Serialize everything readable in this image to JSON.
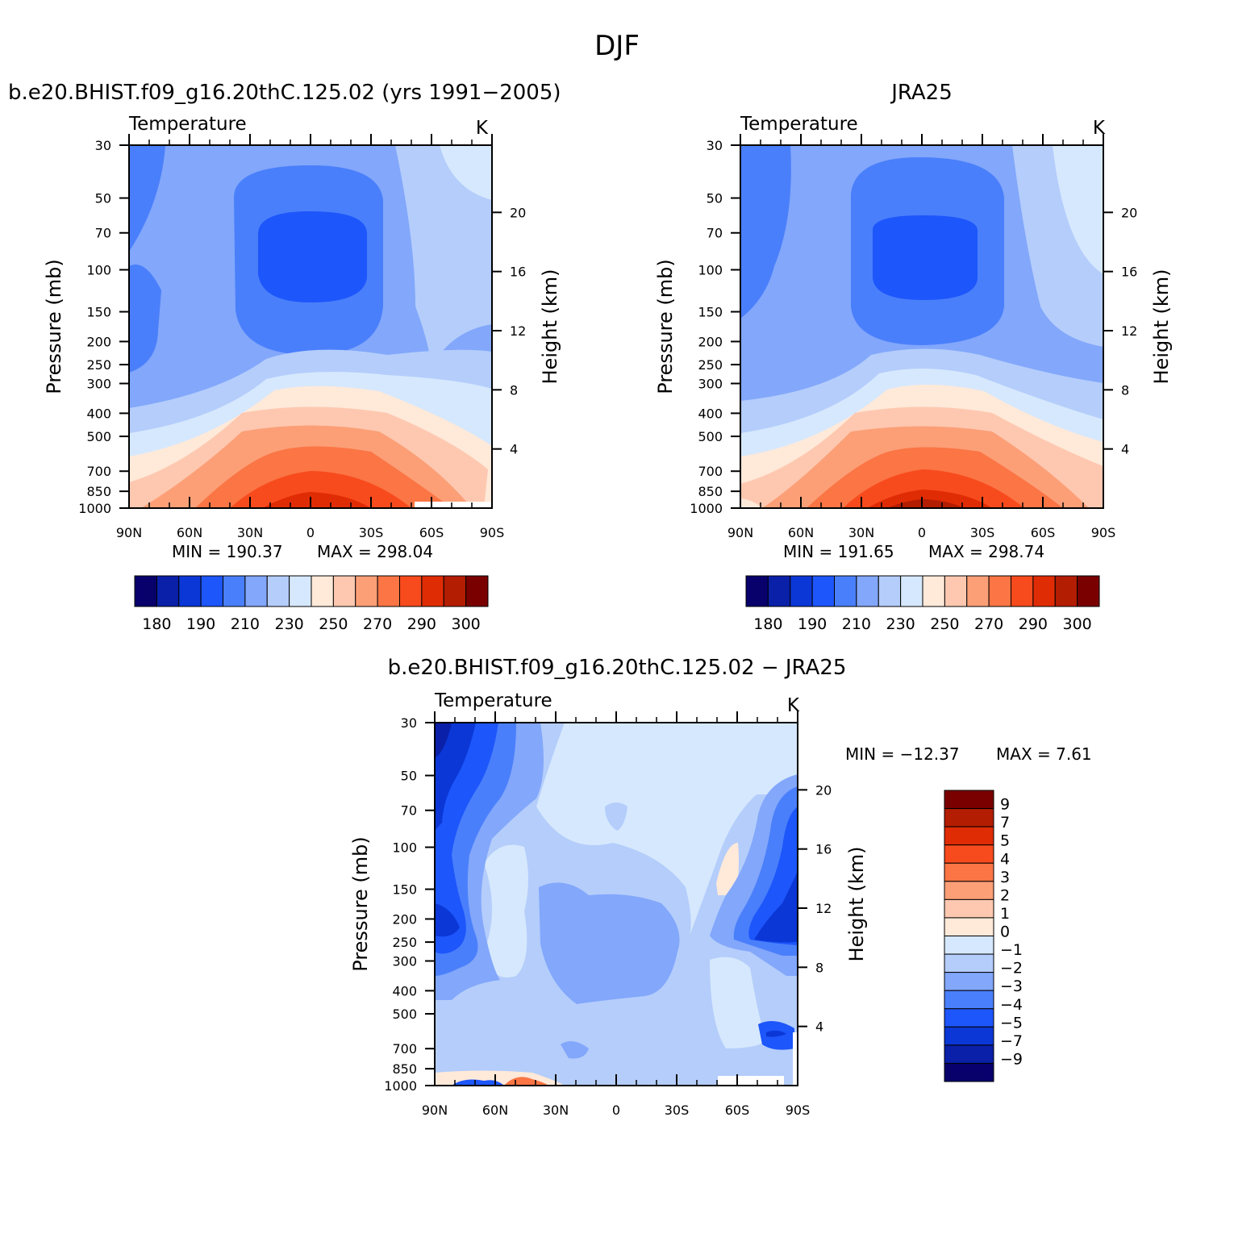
{
  "figure": {
    "title": "DJF"
  },
  "chart_data": [
    {
      "type": "heatmap",
      "panel": "model",
      "title": "b.e20.BHIST.f09_g16.20thC.125.02 (yrs 1991−2005)",
      "left_label": "Temperature",
      "right_label": "K",
      "xlabel": "",
      "ylabel": "Pressure (mb)",
      "y2label": "Height (km)",
      "x_ticks": [
        "90N",
        "60N",
        "30N",
        "0",
        "30S",
        "60S",
        "90S"
      ],
      "y_ticks": [
        "30",
        "50",
        "70",
        "100",
        "150",
        "200",
        "250",
        "300",
        "400",
        "500",
        "700",
        "850",
        "1000"
      ],
      "y2_ticks": [
        "20",
        "16",
        "12",
        "8",
        "4"
      ],
      "ylim": [
        1000,
        30
      ],
      "xlim": [
        90,
        -90
      ],
      "log_y": true,
      "min_label": "MIN = 190.37",
      "max_label": "MAX = 298.04",
      "min": 190.37,
      "max": 298.04,
      "colorbar_ticks": [
        "180",
        "190",
        "210",
        "230",
        "250",
        "270",
        "290",
        "300"
      ]
    },
    {
      "type": "heatmap",
      "panel": "observations",
      "title": "JRA25",
      "left_label": "Temperature",
      "right_label": "K",
      "xlabel": "",
      "ylabel": "Pressure (mb)",
      "y2label": "Height (km)",
      "x_ticks": [
        "90N",
        "60N",
        "30N",
        "0",
        "30S",
        "60S",
        "90S"
      ],
      "y_ticks": [
        "30",
        "50",
        "70",
        "100",
        "150",
        "200",
        "250",
        "300",
        "400",
        "500",
        "700",
        "850",
        "1000"
      ],
      "y2_ticks": [
        "20",
        "16",
        "12",
        "8",
        "4"
      ],
      "ylim": [
        1000,
        30
      ],
      "xlim": [
        90,
        -90
      ],
      "log_y": true,
      "min_label": "MIN = 191.65",
      "max_label": "MAX = 298.74",
      "min": 191.65,
      "max": 298.74,
      "colorbar_ticks": [
        "180",
        "190",
        "210",
        "230",
        "250",
        "270",
        "290",
        "300"
      ]
    },
    {
      "type": "heatmap",
      "panel": "difference",
      "title": "b.e20.BHIST.f09_g16.20thC.125.02 − JRA25",
      "left_label": "Temperature",
      "right_label": "K",
      "xlabel": "",
      "ylabel": "Pressure (mb)",
      "y2label": "Height (km)",
      "x_ticks": [
        "90N",
        "60N",
        "30N",
        "0",
        "30S",
        "60S",
        "90S"
      ],
      "y_ticks": [
        "30",
        "50",
        "70",
        "100",
        "150",
        "200",
        "250",
        "300",
        "400",
        "500",
        "700",
        "850",
        "1000"
      ],
      "y2_ticks": [
        "20",
        "16",
        "12",
        "8",
        "4"
      ],
      "ylim": [
        1000,
        30
      ],
      "xlim": [
        90,
        -90
      ],
      "log_y": true,
      "min_label": "MIN = −12.37",
      "max_label": "MAX =    7.61",
      "min": -12.37,
      "max": 7.61,
      "colorbar_ticks": [
        "9",
        "7",
        "5",
        "4",
        "3",
        "2",
        "1",
        "0",
        "−1",
        "−2",
        "−3",
        "−4",
        "−5",
        "−7",
        "−9"
      ]
    }
  ],
  "colors": {
    "temperature_scale": [
      "#08006b",
      "#0a20a8",
      "#0b37d6",
      "#1d56fb",
      "#4a7ffb",
      "#82a7fb",
      "#b4cdfb",
      "#d6e8fd",
      "#ffe9d9",
      "#fec8b0",
      "#fc9f77",
      "#fb7545",
      "#f84b1d",
      "#e02c04",
      "#b31d02",
      "#7a0000"
    ],
    "difference_scale": [
      "#08006b",
      "#0a20a8",
      "#0b37d6",
      "#1d56fb",
      "#4a7ffb",
      "#82a7fb",
      "#b4cdfb",
      "#d6e8fd",
      "#ffe9d9",
      "#fec8b0",
      "#fc9f77",
      "#fb7545",
      "#f84b1d",
      "#e02c04",
      "#b31d02",
      "#7a0000"
    ]
  }
}
